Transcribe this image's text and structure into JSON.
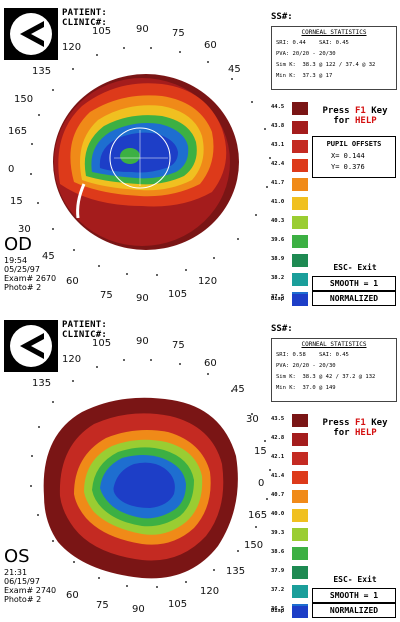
{
  "panels": [
    {
      "header": {
        "patient": "PATIENT:",
        "clinic": "CLINIC#:",
        "ss": "SS#:"
      },
      "stats": {
        "title": "CORNEAL STATISTICS",
        "lines": [
          "SRI: 0.44    SAI: 0.45",
          "PVA: 20/20 - 20/30",
          "Sim K:  38.3 @ 122 / 37.4 @ 32",
          "Min K:  37.3 @ 17"
        ]
      },
      "axis_ticks": [
        "105",
        "90",
        "75",
        "60",
        "45",
        "120",
        "135",
        "150",
        "165",
        "0",
        "15",
        "30",
        "45",
        "60",
        "75",
        "90",
        "105",
        "120"
      ],
      "legend": {
        "labels": [
          "44.5",
          "43.8",
          "43.1",
          "42.4",
          "41.7",
          "41.0",
          "40.3",
          "39.6",
          "38.9",
          "38.2",
          "37.5",
          "Disp"
        ],
        "colors": [
          "#7a1515",
          "#a41c1c",
          "#c42a22",
          "#dd3a1a",
          "#f08a18",
          "#f0c020",
          "#9acd32",
          "#3cb043",
          "#1e8a52",
          "#1a9e9a",
          "#1e6ed0",
          "#1d3ec7"
        ]
      },
      "help": {
        "line1_a": "Press ",
        "line1_key": "F1",
        "line1_b": " Key",
        "line2_a": "for ",
        "line2_key": "HELP"
      },
      "pupil": {
        "title": "PUPIL OFFSETS",
        "x": "X=  0.144",
        "y": "Y=  0.376"
      },
      "esc_label": "ESC- Exit",
      "smooth_label": "SMOOTH = 1",
      "normalized_label": "NORMALIZED",
      "eye": "OD",
      "meta": [
        "19:54",
        "05/25/97",
        "Exam# 2670",
        "Photo# 2"
      ]
    },
    {
      "header": {
        "patient": "PATIENT:",
        "clinic": "CLINIC#:",
        "ss": "SS#:"
      },
      "stats": {
        "title": "CORNEAL STATISTICS",
        "lines": [
          "SRI: 0.58    SAI: 0.45",
          "PVA: 20/20 - 20/30",
          "Sim K:  38.3 @ 42 / 37.2 @ 132",
          "Min K:  37.0 @ 149"
        ]
      },
      "axis_ticks": [
        "105",
        "90",
        "75",
        "60",
        "120",
        "45",
        "135",
        "30",
        "15",
        "0",
        "165",
        "150",
        "135",
        "120",
        "105",
        "90",
        "75",
        "60"
      ],
      "legend": {
        "labels": [
          "43.5",
          "42.8",
          "42.1",
          "41.4",
          "40.7",
          "40.0",
          "39.3",
          "38.6",
          "37.9",
          "37.2",
          "36.5",
          "Disp"
        ],
        "colors": [
          "#7a1515",
          "#a41c1c",
          "#c42a22",
          "#dd3a1a",
          "#f08a18",
          "#f0c020",
          "#9acd32",
          "#3cb043",
          "#1e8a52",
          "#1a9e9a",
          "#1e6ed0",
          "#1d3ec7"
        ]
      },
      "help": {
        "line1_a": "Press ",
        "line1_key": "F1",
        "line1_b": " Key",
        "line2_a": "for ",
        "line2_key": "HELP"
      },
      "esc_label": "ESC- Exit",
      "smooth_label": "SMOOTH = 1",
      "normalized_label": "NORMALIZED",
      "eye": "OS",
      "meta": [
        "21:31",
        "06/15/97",
        "Exam# 2740",
        "Photo# 2"
      ]
    }
  ]
}
